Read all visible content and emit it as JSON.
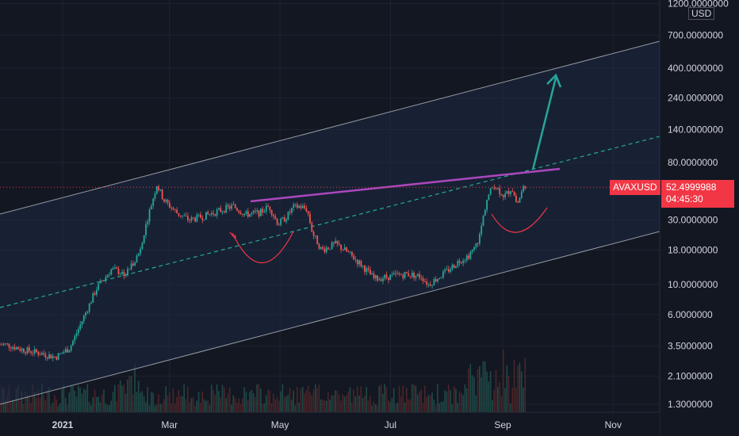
{
  "chart_data": {
    "type": "candlestick",
    "symbol": "AVAXUSD",
    "currency": "USD",
    "scale": "log",
    "last_price": "52.4999988",
    "countdown": "04:45:30",
    "y_ticks": [
      "1200.0000000",
      "700.0000000",
      "400.0000000",
      "240.0000000",
      "140.0000000",
      "80.0000000",
      "30.0000000",
      "18.0000000",
      "10.0000000",
      "6.0000000",
      "3.5000000",
      "2.1000000",
      "1.3000000"
    ],
    "x_ticks": [
      {
        "label": "2021",
        "bold": true
      },
      {
        "label": "Mar",
        "bold": false
      },
      {
        "label": "May",
        "bold": false
      },
      {
        "label": "Jul",
        "bold": false
      },
      {
        "label": "Sep",
        "bold": false
      },
      {
        "label": "Nov",
        "bold": false
      }
    ],
    "price_path": [
      [
        "2020-12-01",
        3.6
      ],
      [
        "2020-12-10",
        3.3
      ],
      [
        "2020-12-20",
        3.1
      ],
      [
        "2020-12-28",
        2.9
      ],
      [
        "2021-01-05",
        3.4
      ],
      [
        "2021-01-12",
        5.5
      ],
      [
        "2021-01-20",
        9.5
      ],
      [
        "2021-01-28",
        13
      ],
      [
        "2021-02-05",
        12
      ],
      [
        "2021-02-12",
        17
      ],
      [
        "2021-02-18",
        35
      ],
      [
        "2021-02-22",
        55
      ],
      [
        "2021-02-26",
        42
      ],
      [
        "2021-03-05",
        34
      ],
      [
        "2021-03-12",
        30
      ],
      [
        "2021-03-20",
        32
      ],
      [
        "2021-03-28",
        35
      ],
      [
        "2021-04-05",
        38
      ],
      [
        "2021-04-12",
        33
      ],
      [
        "2021-04-20",
        34
      ],
      [
        "2021-04-25",
        38
      ],
      [
        "2021-04-30",
        28
      ],
      [
        "2021-05-05",
        32
      ],
      [
        "2021-05-08",
        37
      ],
      [
        "2021-05-12",
        38
      ],
      [
        "2021-05-16",
        36
      ],
      [
        "2021-05-19",
        24
      ],
      [
        "2021-05-24",
        18
      ],
      [
        "2021-06-01",
        20
      ],
      [
        "2021-06-08",
        17
      ],
      [
        "2021-06-15",
        14
      ],
      [
        "2021-06-22",
        11
      ],
      [
        "2021-07-01",
        11.5
      ],
      [
        "2021-07-10",
        12
      ],
      [
        "2021-07-18",
        11.5
      ],
      [
        "2021-07-22",
        10
      ],
      [
        "2021-08-01",
        12.5
      ],
      [
        "2021-08-08",
        15
      ],
      [
        "2021-08-15",
        17
      ],
      [
        "2021-08-19",
        22
      ],
      [
        "2021-08-23",
        42
      ],
      [
        "2021-08-27",
        55
      ],
      [
        "2021-09-02",
        45
      ],
      [
        "2021-09-06",
        52
      ],
      [
        "2021-09-09",
        39
      ],
      [
        "2021-09-13",
        55
      ],
      [
        "2021-09-15",
        52.5
      ]
    ]
  }
}
